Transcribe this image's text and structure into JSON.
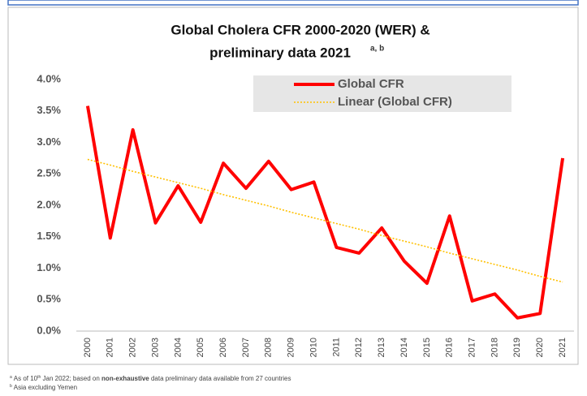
{
  "chart_data": {
    "type": "line",
    "title_lines": [
      "Global Cholera CFR 2000-2020 (WER) &",
      "preliminary data 2021"
    ],
    "title_superscript": "a, b",
    "categories": [
      "2000",
      "2001",
      "2002",
      "2003",
      "2004",
      "2005",
      "2006",
      "2007",
      "2008",
      "2009",
      "2010",
      "2011",
      "2012",
      "2013",
      "2014",
      "2015",
      "2016",
      "2017",
      "2018",
      "2019",
      "2020",
      "2021"
    ],
    "series": [
      {
        "name": "Global CFR",
        "color": "#ff0000",
        "style": "solid",
        "values": [
          3.58,
          1.48,
          3.2,
          1.72,
          2.31,
          1.73,
          2.67,
          2.27,
          2.7,
          2.25,
          2.37,
          1.33,
          1.24,
          1.64,
          1.11,
          0.76,
          1.83,
          0.48,
          0.59,
          0.21,
          0.28,
          2.75
        ]
      },
      {
        "name": "Linear (Global CFR)",
        "color": "#ffc000",
        "style": "dotted",
        "values": [
          2.73,
          2.64,
          2.54,
          2.45,
          2.36,
          2.27,
          2.17,
          2.08,
          1.99,
          1.89,
          1.8,
          1.71,
          1.62,
          1.52,
          1.43,
          1.34,
          1.24,
          1.15,
          1.06,
          0.97,
          0.87,
          0.78
        ]
      }
    ],
    "ylim": [
      0,
      4
    ],
    "yticks": [
      {
        "value": 0,
        "label": "0.0%"
      },
      {
        "value": 0.5,
        "label": "0.5%"
      },
      {
        "value": 1,
        "label": "1.0%"
      },
      {
        "value": 1.5,
        "label": "1.5%"
      },
      {
        "value": 2,
        "label": "2.0%"
      },
      {
        "value": 2.5,
        "label": "2.5%"
      },
      {
        "value": 3,
        "label": "3.0%"
      },
      {
        "value": 3.5,
        "label": "3.5%"
      },
      {
        "value": 4,
        "label": "4.0%"
      }
    ],
    "grid": false,
    "legend_position": "top-right",
    "footnotes": [
      {
        "mark": "a",
        "parts": [
          "As of 10",
          "th",
          " Jan 2022; based on ",
          "non-exhaustive",
          " data preliminary data available from 27 countries"
        ]
      },
      {
        "mark": "b",
        "parts": [
          "Asia excluding Yemen"
        ]
      }
    ]
  }
}
